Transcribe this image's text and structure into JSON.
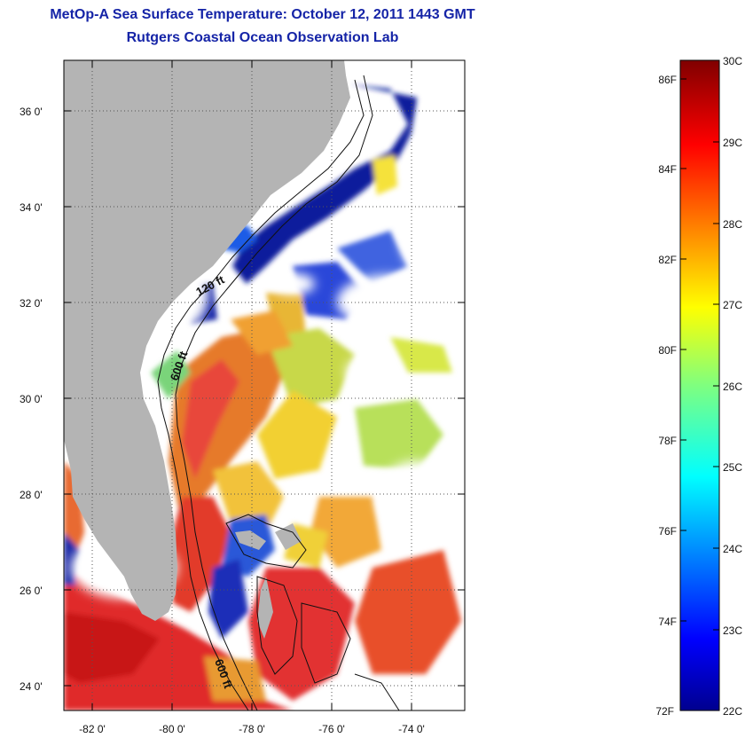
{
  "title": "MetOp-A Sea Surface Temperature:  October 12, 2011 1443 GMT",
  "subtitle": "Rutgers Coastal Ocean Observation Lab",
  "map": {
    "lon_range": [
      -83.0,
      -73.0
    ],
    "lat_range": [
      23.0,
      37.0
    ],
    "lon_ticks": [
      "-82 0'",
      "-80 0'",
      "-78 0'",
      "-76 0'",
      "-74 0'"
    ],
    "lat_ticks": [
      "36 0'",
      "34 0'",
      "32 0'",
      "30 0'",
      "28 0'",
      "26 0'",
      "24 0'"
    ],
    "contour_labels": [
      "120 ft",
      "600 ft",
      "600 ft"
    ],
    "land_color": "#b4b4b4",
    "grid": "dotted"
  },
  "colorbar": {
    "min_c": 22,
    "max_c": 30,
    "celsius_labels": [
      "30C",
      "29C",
      "28C",
      "27C",
      "26C",
      "25C",
      "24C",
      "23C",
      "22C"
    ],
    "fahrenheit_labels": [
      "86F",
      "84F",
      "82F",
      "80F",
      "78F",
      "76F",
      "74F",
      "72F"
    ],
    "colormap": "jet"
  }
}
